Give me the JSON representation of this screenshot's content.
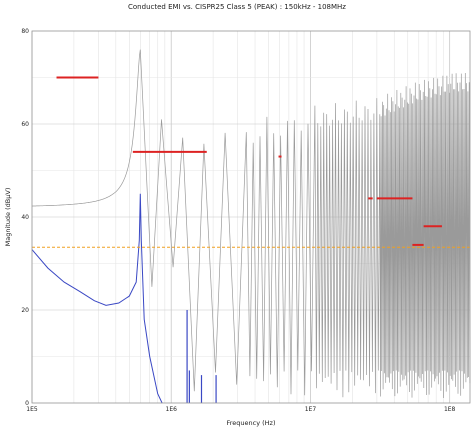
{
  "chart_data": {
    "type": "line",
    "title": "Conducted EMI vs. CISPR25 Class 5 (PEAK) : 150kHz - 108MHz",
    "xlabel": "Frequency (Hz)",
    "ylabel": "Magnitude (dBµV)",
    "x_scale": "log",
    "xlim": [
      100000,
      140000000
    ],
    "ylim": [
      0,
      80
    ],
    "grid": true,
    "x_major_ticks": [
      {
        "value": 100000,
        "label": "1E5"
      },
      {
        "value": 1000000,
        "label": "1E6"
      },
      {
        "value": 10000000,
        "label": "1E7"
      },
      {
        "value": 100000000,
        "label": "1E8"
      }
    ],
    "y_ticks": [
      {
        "value": 0,
        "label": "0"
      },
      {
        "value": 20,
        "label": "20"
      },
      {
        "value": 40,
        "label": "40"
      },
      {
        "value": 60,
        "label": "60"
      },
      {
        "value": 80,
        "label": "80"
      }
    ],
    "series": [
      {
        "color": "#9a9a9a",
        "baseline_db": 42,
        "fundamental_hz": 600000,
        "fundamental_peak_db": 76,
        "spectral_floor_db": 1,
        "harmonic_peaks_db": [
          [
            1200000,
            61
          ],
          [
            3000000,
            60
          ],
          [
            10000000,
            64
          ],
          [
            30000000,
            66
          ],
          [
            60000000,
            70
          ],
          [
            108000000,
            72
          ]
        ]
      },
      {
        "color": "#3a48c4",
        "points": [
          [
            100000,
            33
          ],
          [
            130000,
            29
          ],
          [
            170000,
            26
          ],
          [
            220000,
            24
          ],
          [
            280000,
            22
          ],
          [
            340000,
            21
          ],
          [
            420000,
            21.5
          ],
          [
            500000,
            23
          ],
          [
            560000,
            26
          ],
          [
            590000,
            35
          ],
          [
            600000,
            45
          ],
          [
            610000,
            35
          ],
          [
            640000,
            18
          ],
          [
            700000,
            10
          ],
          [
            800000,
            2
          ],
          [
            860000,
            0
          ]
        ],
        "spikes_db": [
          [
            1300000,
            20
          ],
          [
            1350000,
            7
          ],
          [
            1650000,
            6
          ],
          [
            2100000,
            6
          ]
        ]
      }
    ],
    "limit_lines": [
      {
        "color": "#dd2222",
        "x_range": [
          150000,
          300000
        ],
        "value": 70
      },
      {
        "color": "#dd2222",
        "x_range": [
          530000,
          1800000
        ],
        "value": 54
      },
      {
        "color": "#dd2222",
        "x_range": [
          5900000,
          6200000
        ],
        "value": 53
      },
      {
        "color": "#dd2222",
        "x_range": [
          26000000,
          28000000
        ],
        "value": 44
      },
      {
        "color": "#dd2222",
        "x_range": [
          30000000,
          54000000
        ],
        "value": 44
      },
      {
        "color": "#dd2222",
        "x_range": [
          65000000,
          88000000
        ],
        "value": 38
      },
      {
        "color": "#dd2222",
        "x_range": [
          54000000,
          65000000
        ],
        "value": 34
      }
    ],
    "reference_line": {
      "color": "#f0a020",
      "style": "dashed",
      "value": 33.5
    }
  }
}
